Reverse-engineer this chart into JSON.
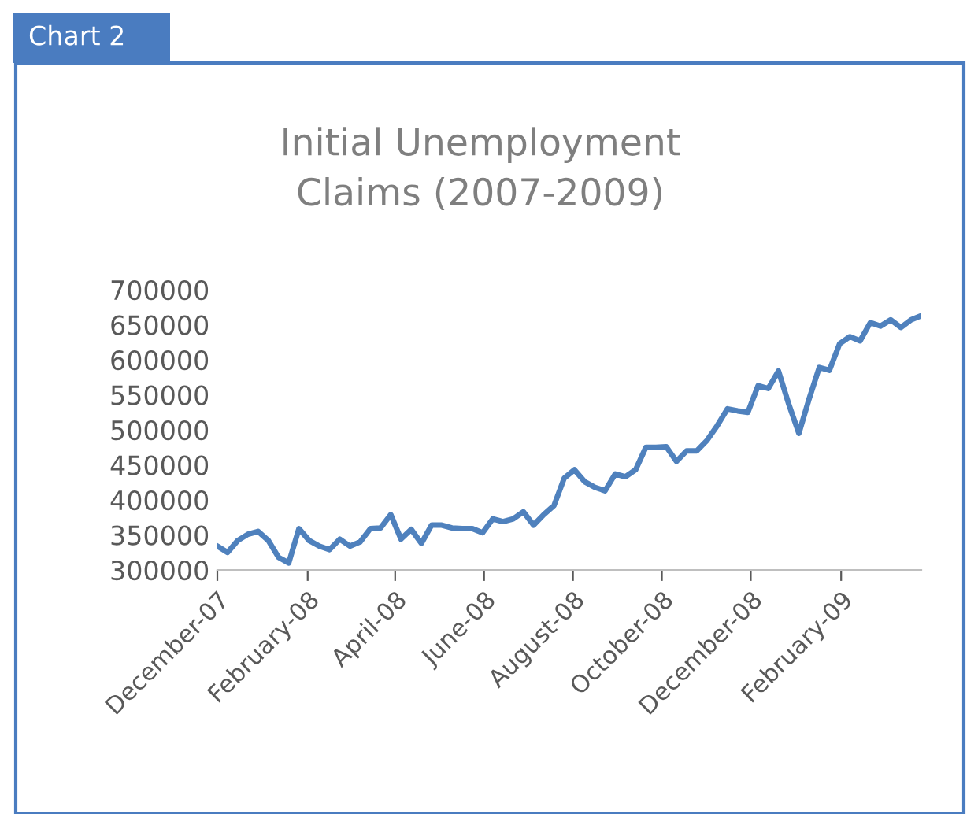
{
  "chart_data": {
    "type": "line",
    "title": "Initial Unemployment\nClaims (2007-2009)",
    "annotations": [
      "Chart 2"
    ],
    "x": [
      "2007-12-01",
      "2007-12-08",
      "2007-12-15",
      "2007-12-22",
      "2007-12-29",
      "2008-01-05",
      "2008-01-12",
      "2008-01-19",
      "2008-01-26",
      "2008-02-02",
      "2008-02-09",
      "2008-02-16",
      "2008-02-23",
      "2008-03-01",
      "2008-03-08",
      "2008-03-15",
      "2008-03-22",
      "2008-03-29",
      "2008-04-05",
      "2008-04-12",
      "2008-04-19",
      "2008-04-26",
      "2008-05-03",
      "2008-05-10",
      "2008-05-17",
      "2008-05-24",
      "2008-05-31",
      "2008-06-07",
      "2008-06-14",
      "2008-06-21",
      "2008-06-28",
      "2008-07-05",
      "2008-07-12",
      "2008-07-19",
      "2008-07-26",
      "2008-08-02",
      "2008-08-09",
      "2008-08-16",
      "2008-08-23",
      "2008-08-30",
      "2008-09-06",
      "2008-09-13",
      "2008-09-20",
      "2008-09-27",
      "2008-10-04",
      "2008-10-11",
      "2008-10-18",
      "2008-10-25",
      "2008-11-01",
      "2008-11-08",
      "2008-11-15",
      "2008-11-22",
      "2008-11-29",
      "2008-12-06",
      "2008-12-13",
      "2008-12-20",
      "2008-12-27",
      "2009-01-03",
      "2009-01-10",
      "2009-01-17",
      "2009-01-24",
      "2009-01-31",
      "2009-02-07",
      "2009-02-14",
      "2009-02-21",
      "2009-02-28",
      "2009-03-07",
      "2009-03-14",
      "2009-03-21",
      "2009-03-28"
    ],
    "series": [
      {
        "color": "#4f81bd",
        "values": [
          334000,
          325000,
          342000,
          351000,
          355000,
          342000,
          318000,
          310000,
          359000,
          342000,
          334000,
          329000,
          344000,
          334000,
          340000,
          359000,
          360000,
          379000,
          344000,
          358000,
          338000,
          364000,
          364000,
          360000,
          359000,
          359000,
          353000,
          373000,
          369000,
          373000,
          383000,
          364000,
          379000,
          392000,
          431000,
          443000,
          426000,
          418000,
          413000,
          437000,
          433000,
          443000,
          475000,
          475000,
          476000,
          455000,
          470000,
          470000,
          485000,
          506000,
          530000,
          527000,
          525000,
          563000,
          559000,
          584000,
          537000,
          495000,
          544000,
          589000,
          585000,
          623000,
          633000,
          627000,
          653000,
          648000,
          657000,
          646000,
          657000,
          663000
        ]
      }
    ],
    "xlim": [
      "2007-12-01",
      "2009-03-28"
    ],
    "xticks": [
      {
        "value": "2007-12-01",
        "label": "December-07"
      },
      {
        "value": "2008-02-01",
        "label": "February-08"
      },
      {
        "value": "2008-04-01",
        "label": "April-08"
      },
      {
        "value": "2008-06-01",
        "label": "June-08"
      },
      {
        "value": "2008-08-01",
        "label": "August-08"
      },
      {
        "value": "2008-10-01",
        "label": "October-08"
      },
      {
        "value": "2008-12-01",
        "label": "December-08"
      },
      {
        "value": "2009-02-01",
        "label": "February-09"
      }
    ],
    "ylim": [
      300000,
      700000
    ],
    "yticks": [
      300000,
      350000,
      400000,
      450000,
      500000,
      550000,
      600000,
      650000,
      700000
    ],
    "grid": false,
    "legend": false
  }
}
